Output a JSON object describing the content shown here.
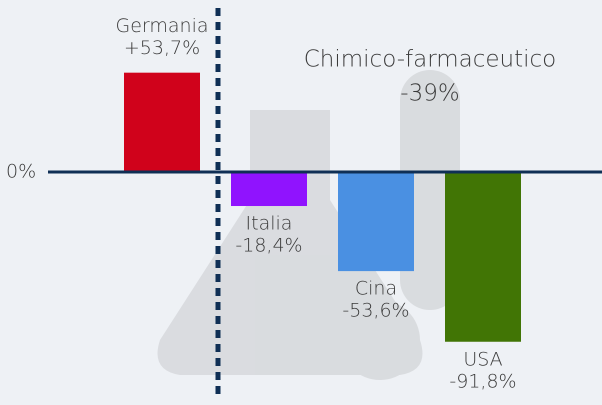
{
  "chart_data": {
    "type": "bar",
    "title": "Chimico-farmaceutico",
    "subtitle": "-39%",
    "categories": [
      "Germania",
      "Italia",
      "Cina",
      "USA"
    ],
    "values": [
      53.7,
      -18.4,
      -53.6,
      -91.8
    ],
    "value_labels": [
      "+53,7%",
      "-18,4%",
      "-53,6%",
      "-91,8%"
    ],
    "colors": [
      "#d0021b",
      "#9013fe",
      "#4a90e2",
      "#417505"
    ],
    "ylim": [
      -126,
      93
    ],
    "yticks": [
      {
        "value": 0,
        "label": "0%"
      }
    ]
  }
}
